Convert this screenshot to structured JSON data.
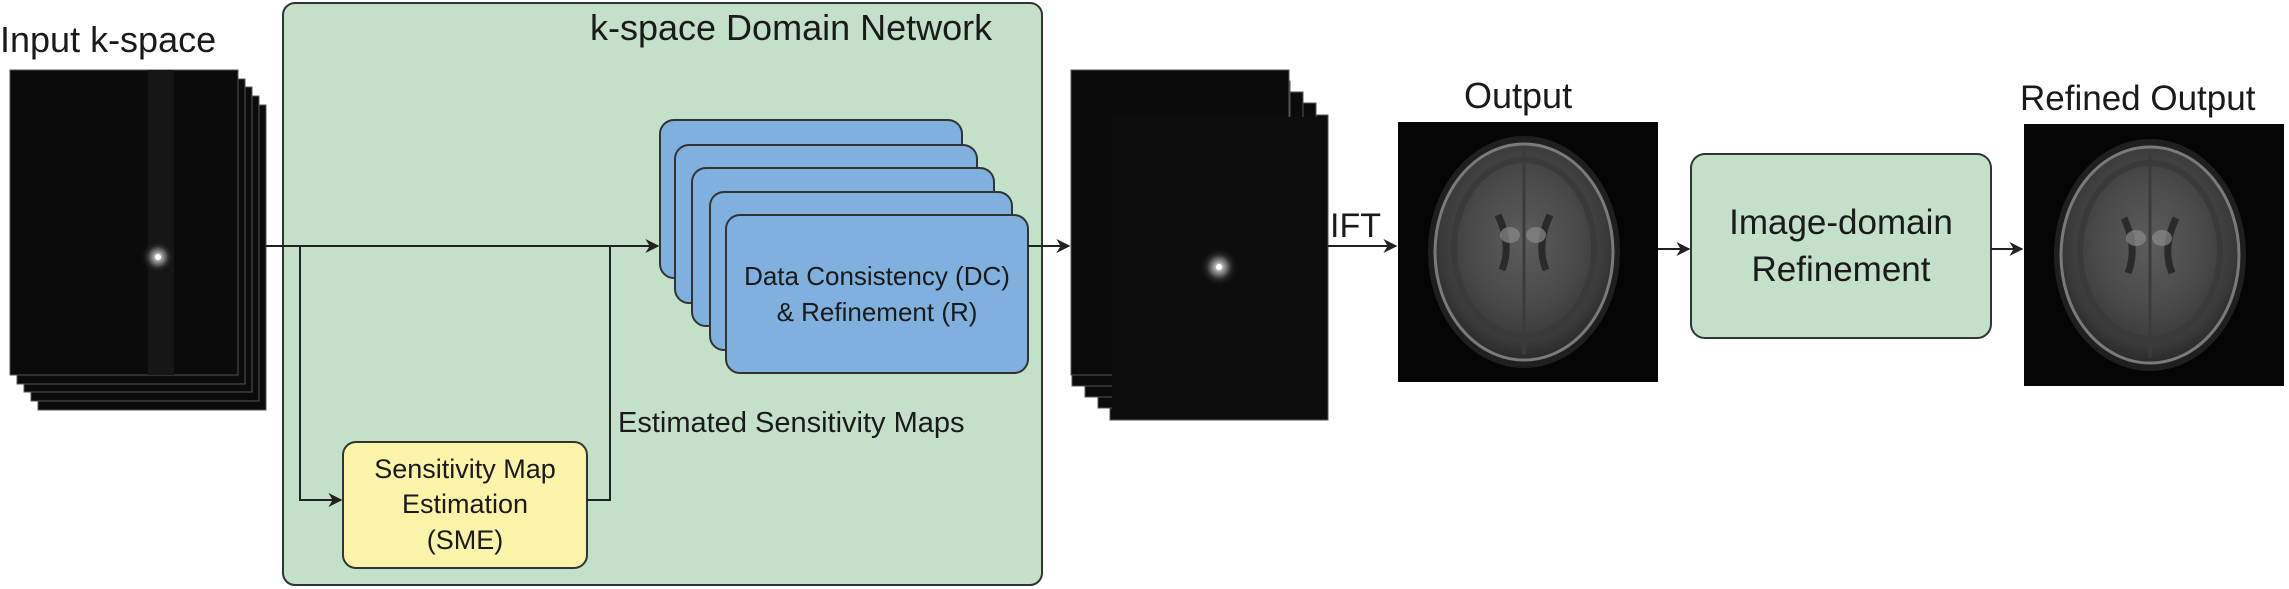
{
  "labels": {
    "input": "Input k-space",
    "network": "k-space Domain Network",
    "est_maps": "Estimated Sensitivity Maps",
    "ift": "IFT",
    "output": "Output",
    "refined": "Refined Output"
  },
  "boxes": {
    "dc_line1": "Data Consistency (DC)",
    "dc_line2": "& Refinement (R)",
    "sme_line1": "Sensitivity Map",
    "sme_line2": "Estimation",
    "sme_line3": "(SME)",
    "img_line1": "Image-domain",
    "img_line2": "Refinement"
  },
  "colors": {
    "network_bg": "#c3e1c8",
    "dc_fill": "#80b0dd",
    "sme_fill": "#fbf3a8",
    "img_fill": "#c3e1c8",
    "stroke": "#333333",
    "arrow": "#222222"
  },
  "icons": {
    "kspace": "k-space-stack",
    "mri": "brain-mri-axial"
  }
}
